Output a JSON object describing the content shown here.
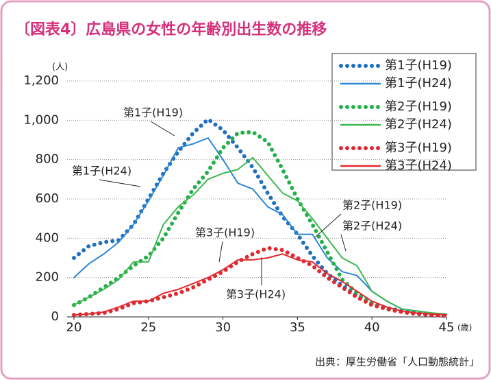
{
  "chart_data": {
    "type": "line",
    "title": "〔図表4〕広島県の女性の年齢別出生数の推移",
    "y_unit": "(人)",
    "x_unit": "(歳)",
    "source": "出典：厚生労働省「人口動態統計」",
    "x": [
      20,
      21,
      22,
      23,
      24,
      25,
      26,
      27,
      28,
      29,
      30,
      31,
      32,
      33,
      34,
      35,
      36,
      37,
      38,
      39,
      40,
      41,
      42,
      43,
      44,
      45
    ],
    "xlim": [
      20,
      45
    ],
    "xticks": [
      20,
      25,
      30,
      35,
      40,
      45
    ],
    "ylim": [
      0,
      1200
    ],
    "yticks": [
      0,
      200,
      400,
      600,
      800,
      {
        "value": 1000,
        "label": "1,000"
      },
      {
        "value": 1200,
        "label": "1,200"
      }
    ],
    "grid": true,
    "legend": "upper right",
    "series": [
      {
        "name": "第1子(H19)",
        "color": "#1f6fc0",
        "style": "dotted",
        "values": [
          300,
          360,
          380,
          390,
          470,
          600,
          730,
          840,
          935,
          1005,
          950,
          860,
          760,
          630,
          510,
          420,
          310,
          220,
          160,
          110,
          70,
          45,
          30,
          20,
          10,
          5
        ]
      },
      {
        "name": "第1子(H24)",
        "color": "#2a86d6",
        "style": "solid",
        "values": [
          200,
          270,
          320,
          380,
          470,
          590,
          720,
          860,
          880,
          910,
          800,
          680,
          650,
          560,
          520,
          420,
          420,
          300,
          230,
          210,
          130,
          80,
          40,
          30,
          20,
          10
        ]
      },
      {
        "name": "第2子(H19)",
        "color": "#22b04a",
        "style": "dotted",
        "values": [
          60,
          100,
          150,
          200,
          260,
          310,
          400,
          530,
          650,
          740,
          860,
          935,
          940,
          890,
          750,
          600,
          470,
          330,
          190,
          120,
          70,
          40,
          25,
          15,
          10,
          5
        ]
      },
      {
        "name": "第2子(H24)",
        "color": "#3cb84e",
        "style": "solid",
        "values": [
          60,
          100,
          140,
          190,
          280,
          280,
          470,
          560,
          620,
          700,
          730,
          750,
          810,
          720,
          630,
          590,
          500,
          400,
          300,
          260,
          130,
          80,
          40,
          30,
          20,
          15
        ]
      },
      {
        "name": "第3子(H19)",
        "color": "#e0282e",
        "style": "dotted",
        "values": [
          10,
          15,
          20,
          40,
          70,
          80,
          100,
          120,
          150,
          190,
          230,
          280,
          320,
          350,
          340,
          300,
          260,
          200,
          150,
          100,
          60,
          40,
          25,
          15,
          10,
          5
        ]
      },
      {
        "name": "第3子(H24)",
        "color": "#e3282e",
        "style": "solid",
        "values": [
          10,
          15,
          25,
          50,
          80,
          80,
          120,
          140,
          170,
          200,
          240,
          290,
          290,
          300,
          320,
          290,
          280,
          220,
          180,
          130,
          80,
          50,
          30,
          20,
          15,
          10
        ]
      }
    ],
    "annotations": [
      "第1子(H19)",
      "第1子(H24)",
      "第3子(H19)",
      "第3子(H24)",
      "第2子(H19)",
      "第2子(H24)"
    ]
  }
}
